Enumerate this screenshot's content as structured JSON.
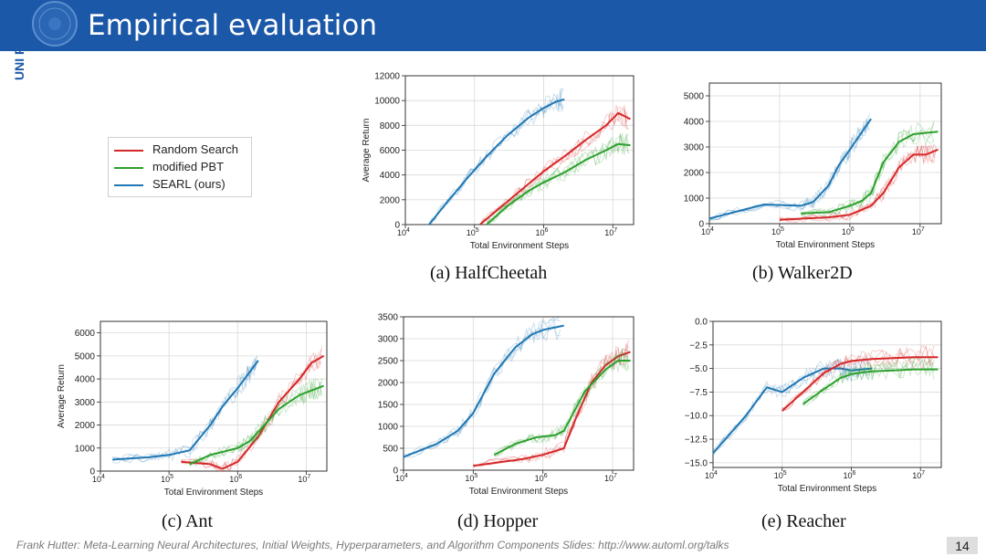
{
  "header": {
    "title": "Empirical evaluation",
    "logo_text": "UNI FREIBURG",
    "brand_color": "#1c58a8"
  },
  "legend": {
    "items": [
      {
        "label": "Random Search",
        "color": "#d62728"
      },
      {
        "label": "modified PBT",
        "color": "#2ca02c"
      },
      {
        "label": "SEARL (ours)",
        "color": "#1f77b4"
      }
    ]
  },
  "footer": {
    "text": "Frank Hutter: Meta-Learning Neural Architectures, Initial Weights, Hyperparameters, and Algorithm Components      Slides: http://www.automl.org/talks",
    "page_number": "14"
  },
  "chart_data": [
    {
      "type": "line",
      "title": "(a) HalfCheetah",
      "xlabel": "Total Environment Steps",
      "ylabel": "Average Return",
      "x_scale": "log",
      "xlim": [
        10000,
        20000000
      ],
      "ylim": [
        0,
        12000
      ],
      "yticks": [
        0,
        2000,
        4000,
        6000,
        8000,
        10000,
        12000
      ],
      "ytick_labels": [
        "0",
        "2000",
        "4000",
        "6000",
        "8000",
        "10000",
        "12000"
      ],
      "series": [
        {
          "name": "Random Search",
          "x": [
            120000,
            250000,
            500000,
            1000000,
            2000000,
            4000000,
            8000000,
            12000000,
            18000000
          ],
          "y": [
            0,
            1500,
            2900,
            4300,
            5500,
            6800,
            8000,
            9000,
            8500
          ]
        },
        {
          "name": "modified PBT",
          "x": [
            150000,
            300000,
            600000,
            1000000,
            2000000,
            4000000,
            8000000,
            12000000,
            18000000
          ],
          "y": [
            0,
            1500,
            2700,
            3400,
            4200,
            5200,
            6000,
            6500,
            6400
          ]
        },
        {
          "name": "SEARL (ours)",
          "x": [
            22000,
            40000,
            80000,
            150000,
            300000,
            600000,
            1000000,
            1500000,
            2000000
          ],
          "y": [
            0,
            1800,
            3800,
            5500,
            7200,
            8600,
            9400,
            9900,
            10100
          ]
        }
      ]
    },
    {
      "type": "line",
      "title": "(b) Walker2D",
      "xlabel": "Total Environment Steps",
      "ylabel": "",
      "x_scale": "log",
      "xlim": [
        10000,
        20000000
      ],
      "ylim": [
        0,
        5500
      ],
      "yticks": [
        0,
        1000,
        2000,
        3000,
        4000,
        5000
      ],
      "ytick_labels": [
        "0",
        "1000",
        "2000",
        "3000",
        "4000",
        "5000"
      ],
      "series": [
        {
          "name": "Random Search",
          "x": [
            100000,
            500000,
            1000000,
            2000000,
            3000000,
            5000000,
            8000000,
            12000000,
            18000000
          ],
          "y": [
            150,
            250,
            350,
            700,
            1200,
            2200,
            2700,
            2700,
            2900
          ]
        },
        {
          "name": "modified PBT",
          "x": [
            200000,
            500000,
            1000000,
            1500000,
            2000000,
            3000000,
            5000000,
            8000000,
            18000000
          ],
          "y": [
            400,
            450,
            700,
            900,
            1200,
            2400,
            3200,
            3500,
            3600
          ]
        },
        {
          "name": "SEARL (ours)",
          "x": [
            10000,
            60000,
            200000,
            300000,
            500000,
            700000,
            1000000,
            1500000,
            2000000
          ],
          "y": [
            200,
            750,
            700,
            850,
            1500,
            2300,
            2900,
            3600,
            4100
          ]
        }
      ]
    },
    {
      "type": "line",
      "title": "(c) Ant",
      "xlabel": "Total Environment Steps",
      "ylabel": "Average Return",
      "x_scale": "log",
      "xlim": [
        10000,
        20000000
      ],
      "ylim": [
        0,
        6500
      ],
      "yticks": [
        0,
        1000,
        2000,
        3000,
        4000,
        5000,
        6000
      ],
      "ytick_labels": [
        "0",
        "1000",
        "2000",
        "3000",
        "4000",
        "5000",
        "6000"
      ],
      "series": [
        {
          "name": "Random Search",
          "x": [
            150000,
            400000,
            600000,
            1000000,
            2000000,
            4000000,
            8000000,
            12000000,
            18000000
          ],
          "y": [
            400,
            300,
            100,
            400,
            1500,
            3000,
            4000,
            4700,
            5000
          ]
        },
        {
          "name": "modified PBT",
          "x": [
            200000,
            400000,
            1000000,
            1500000,
            2000000,
            4000000,
            8000000,
            12000000,
            18000000
          ],
          "y": [
            300,
            700,
            1000,
            1300,
            1700,
            2700,
            3300,
            3500,
            3700
          ]
        },
        {
          "name": "SEARL (ours)",
          "x": [
            15000,
            50000,
            100000,
            200000,
            400000,
            600000,
            1000000,
            1500000,
            2000000
          ],
          "y": [
            500,
            600,
            700,
            900,
            2000,
            2800,
            3600,
            4300,
            4800
          ]
        }
      ]
    },
    {
      "type": "line",
      "title": "(d) Hopper",
      "xlabel": "Total Environment Steps",
      "ylabel": "",
      "x_scale": "log",
      "xlim": [
        10000,
        20000000
      ],
      "ylim": [
        0,
        3500
      ],
      "yticks": [
        0,
        500,
        1000,
        1500,
        2000,
        2500,
        3000,
        3500
      ],
      "ytick_labels": [
        "0",
        "500",
        "1000",
        "1500",
        "2000",
        "2500",
        "3000",
        "3500"
      ],
      "series": [
        {
          "name": "Random Search",
          "x": [
            100000,
            500000,
            1000000,
            2000000,
            3000000,
            5000000,
            8000000,
            12000000,
            18000000
          ],
          "y": [
            100,
            250,
            350,
            500,
            1200,
            2000,
            2400,
            2600,
            2700
          ]
        },
        {
          "name": "modified PBT",
          "x": [
            200000,
            400000,
            800000,
            1500000,
            2000000,
            4000000,
            8000000,
            12000000,
            18000000
          ],
          "y": [
            350,
            600,
            750,
            800,
            900,
            1800,
            2300,
            2500,
            2500
          ]
        },
        {
          "name": "SEARL (ours)",
          "x": [
            10000,
            30000,
            60000,
            100000,
            200000,
            400000,
            700000,
            1000000,
            2000000
          ],
          "y": [
            300,
            600,
            900,
            1300,
            2200,
            2800,
            3100,
            3200,
            3300
          ]
        }
      ]
    },
    {
      "type": "line",
      "title": "(e) Reacher",
      "xlabel": "Total Environment Steps",
      "ylabel": "",
      "x_scale": "log",
      "xlim": [
        10000,
        20000000
      ],
      "ylim": [
        -15.5,
        0
      ],
      "yticks": [
        -15,
        -12.5,
        -10,
        -7.5,
        -5,
        -2.5,
        0
      ],
      "ytick_labels": [
        "−15.0",
        "−12.5",
        "−10.0",
        "−7.5",
        "−5.0",
        "−2.5",
        "0.0"
      ],
      "series": [
        {
          "name": "Random Search",
          "x": [
            100000,
            200000,
            400000,
            700000,
            1000000,
            2000000,
            4000000,
            8000000,
            18000000
          ],
          "y": [
            -9.5,
            -7.5,
            -5.5,
            -4.5,
            -4.2,
            -4.0,
            -3.9,
            -3.8,
            -3.8
          ]
        },
        {
          "name": "modified PBT",
          "x": [
            200000,
            400000,
            700000,
            1000000,
            1500000,
            2000000,
            4000000,
            8000000,
            18000000
          ],
          "y": [
            -8.8,
            -7.2,
            -6.0,
            -5.6,
            -5.4,
            -5.3,
            -5.2,
            -5.1,
            -5.1
          ]
        },
        {
          "name": "SEARL (ours)",
          "x": [
            10000,
            30000,
            60000,
            100000,
            200000,
            400000,
            700000,
            1000000,
            2000000
          ],
          "y": [
            -14.0,
            -10.0,
            -7.0,
            -7.5,
            -6.0,
            -5.0,
            -5.0,
            -5.2,
            -5.0
          ]
        }
      ]
    }
  ]
}
